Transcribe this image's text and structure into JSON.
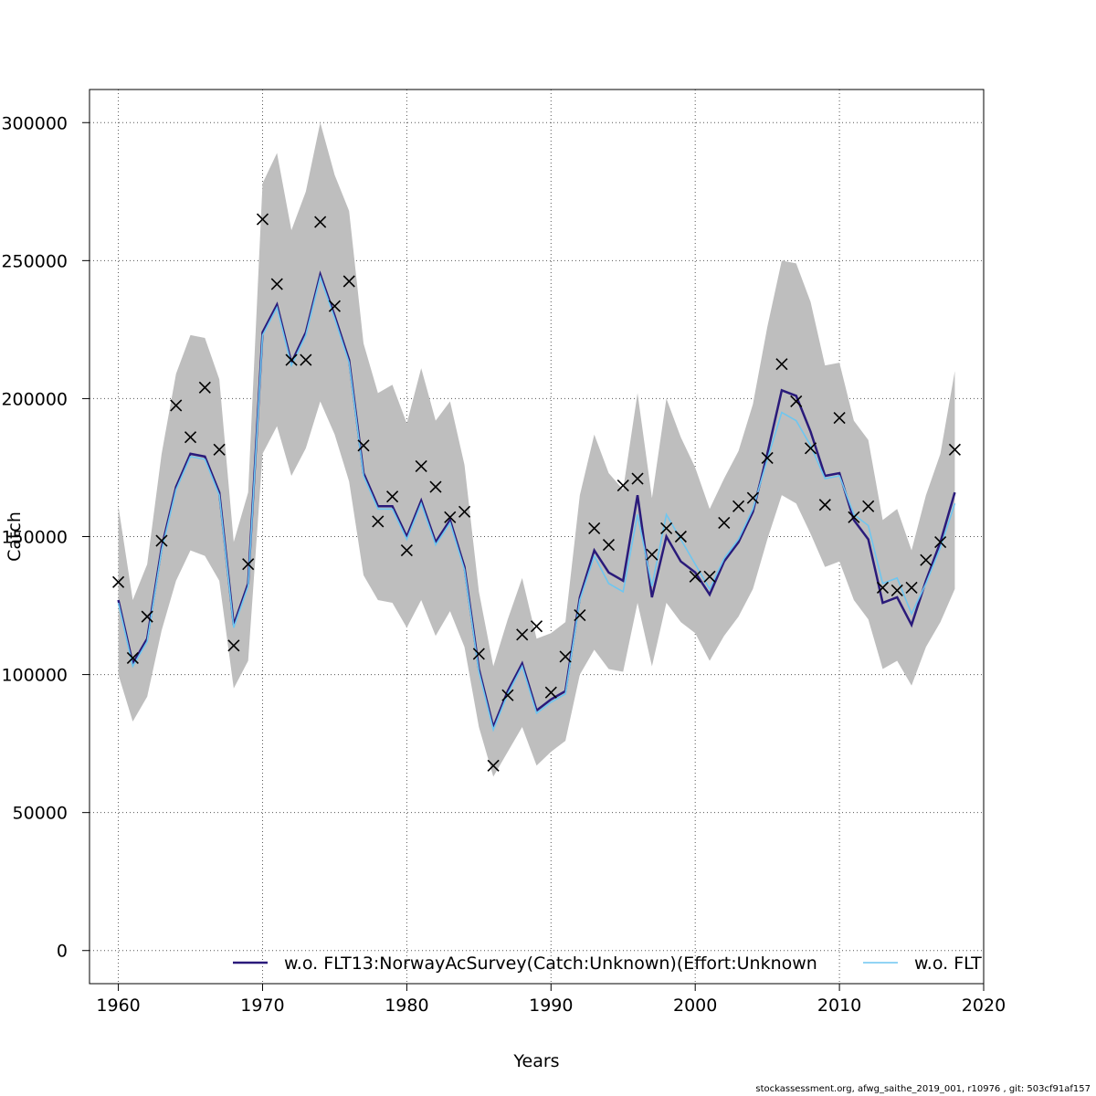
{
  "chart_data": {
    "type": "line",
    "xlabel": "Years",
    "ylabel": "Catch",
    "xlim": [
      1958,
      2020
    ],
    "ylim": [
      -12000,
      312000
    ],
    "x_ticks": [
      1960,
      1970,
      1980,
      1990,
      2000,
      2010,
      2020
    ],
    "y_ticks": [
      0,
      50000,
      100000,
      150000,
      200000,
      250000,
      300000
    ],
    "x_tick_labels": [
      "1960",
      "1970",
      "1980",
      "1990",
      "2000",
      "2010",
      "2020"
    ],
    "y_tick_labels": [
      "0",
      "50000",
      "100000",
      "150000",
      "200000",
      "250000",
      "300000"
    ],
    "grid": true,
    "legend_position": "bottom",
    "years": [
      1960,
      1961,
      1962,
      1963,
      1964,
      1965,
      1966,
      1967,
      1968,
      1969,
      1970,
      1971,
      1972,
      1973,
      1974,
      1975,
      1976,
      1977,
      1978,
      1979,
      1980,
      1981,
      1982,
      1983,
      1984,
      1985,
      1986,
      1987,
      1988,
      1989,
      1990,
      1991,
      1992,
      1993,
      1994,
      1995,
      1996,
      1997,
      1998,
      1999,
      2000,
      2001,
      2002,
      2003,
      2004,
      2005,
      2006,
      2007,
      2008,
      2009,
      2010,
      2011,
      2012,
      2013,
      2014,
      2015,
      2016,
      2017,
      2018
    ],
    "confidence_band": {
      "lower": [
        100000,
        83000,
        92000,
        116000,
        134000,
        145000,
        143000,
        134000,
        95000,
        105000,
        180000,
        190000,
        172000,
        182000,
        199000,
        187000,
        170000,
        136000,
        127000,
        126000,
        117000,
        127000,
        114000,
        123000,
        110000,
        81000,
        63000,
        72000,
        81000,
        67000,
        72000,
        76000,
        100000,
        109000,
        102000,
        101000,
        126000,
        103000,
        126000,
        119000,
        115000,
        105000,
        114000,
        121000,
        131000,
        149000,
        165000,
        162000,
        151000,
        139000,
        141000,
        127000,
        120000,
        102000,
        105000,
        96000,
        110000,
        119000,
        131000
      ],
      "upper": [
        161000,
        127000,
        140000,
        180000,
        209000,
        223000,
        222000,
        207000,
        148000,
        166000,
        278000,
        289000,
        261000,
        275000,
        300000,
        281000,
        268000,
        220000,
        202000,
        205000,
        191000,
        211000,
        192000,
        199000,
        176000,
        130000,
        103000,
        120000,
        135000,
        113000,
        115000,
        119000,
        165000,
        187000,
        173000,
        167000,
        202000,
        164000,
        200000,
        186000,
        175000,
        160000,
        171000,
        181000,
        198000,
        226000,
        250000,
        249000,
        235000,
        212000,
        213000,
        192000,
        185000,
        156000,
        160000,
        145000,
        165000,
        180000,
        210000
      ]
    },
    "series": [
      {
        "name": "w.o. FLT13:NorwayAcSurvey(Catch:Unknown)(Effort:Unknown",
        "color": "#2a1a7a",
        "values": [
          127000,
          104000,
          113000,
          146000,
          168000,
          180000,
          179000,
          166000,
          118000,
          133000,
          224000,
          234000,
          213000,
          224000,
          245000,
          230000,
          214000,
          173000,
          161000,
          161000,
          150000,
          163000,
          148000,
          156000,
          139000,
          102000,
          81000,
          94000,
          104000,
          87000,
          91000,
          94000,
          128000,
          145000,
          137000,
          134000,
          165000,
          128000,
          150000,
          141000,
          137000,
          129000,
          141000,
          148000,
          159000,
          180000,
          203000,
          201000,
          188000,
          172000,
          173000,
          156000,
          149000,
          126000,
          128000,
          118000,
          134000,
          148000,
          166000
        ]
      },
      {
        "name": "w.o. FLT",
        "color": "#6ec6f0",
        "values": [
          126000,
          103000,
          112000,
          145000,
          167000,
          179000,
          178000,
          165000,
          117000,
          132000,
          223000,
          233000,
          212000,
          223000,
          244000,
          229000,
          213000,
          172000,
          160000,
          160000,
          149000,
          162000,
          147000,
          155000,
          138000,
          101000,
          80000,
          93000,
          103000,
          86000,
          90000,
          93000,
          127000,
          143000,
          133000,
          130000,
          158000,
          132000,
          158000,
          149000,
          140000,
          131000,
          142000,
          149000,
          160000,
          178000,
          195000,
          192000,
          183000,
          171000,
          172000,
          158000,
          154000,
          133000,
          135000,
          122000,
          133000,
          146000,
          162000
        ]
      }
    ],
    "observations": [
      133500,
      106000,
      121000,
      148500,
      197500,
      186000,
      204000,
      181500,
      110500,
      140000,
      265000,
      241500,
      214000,
      214000,
      264000,
      233500,
      242500,
      183000,
      155500,
      164500,
      145000,
      175500,
      168000,
      157000,
      159000,
      107500,
      67000,
      92500,
      114500,
      117500,
      93500,
      106500,
      121500,
      153000,
      147000,
      168500,
      171000,
      143500,
      153000,
      150000,
      135500,
      135500,
      155000,
      161000,
      164000,
      178500,
      212500,
      199000,
      182000,
      161500,
      193000,
      157000,
      161000,
      131500,
      130500,
      131500,
      141500,
      148000,
      181500
    ],
    "observation_marker": "x-cross",
    "footer": "stockassessment.org, afwg_saithe_2019_001, r10976 , git: 503cf91af157"
  }
}
